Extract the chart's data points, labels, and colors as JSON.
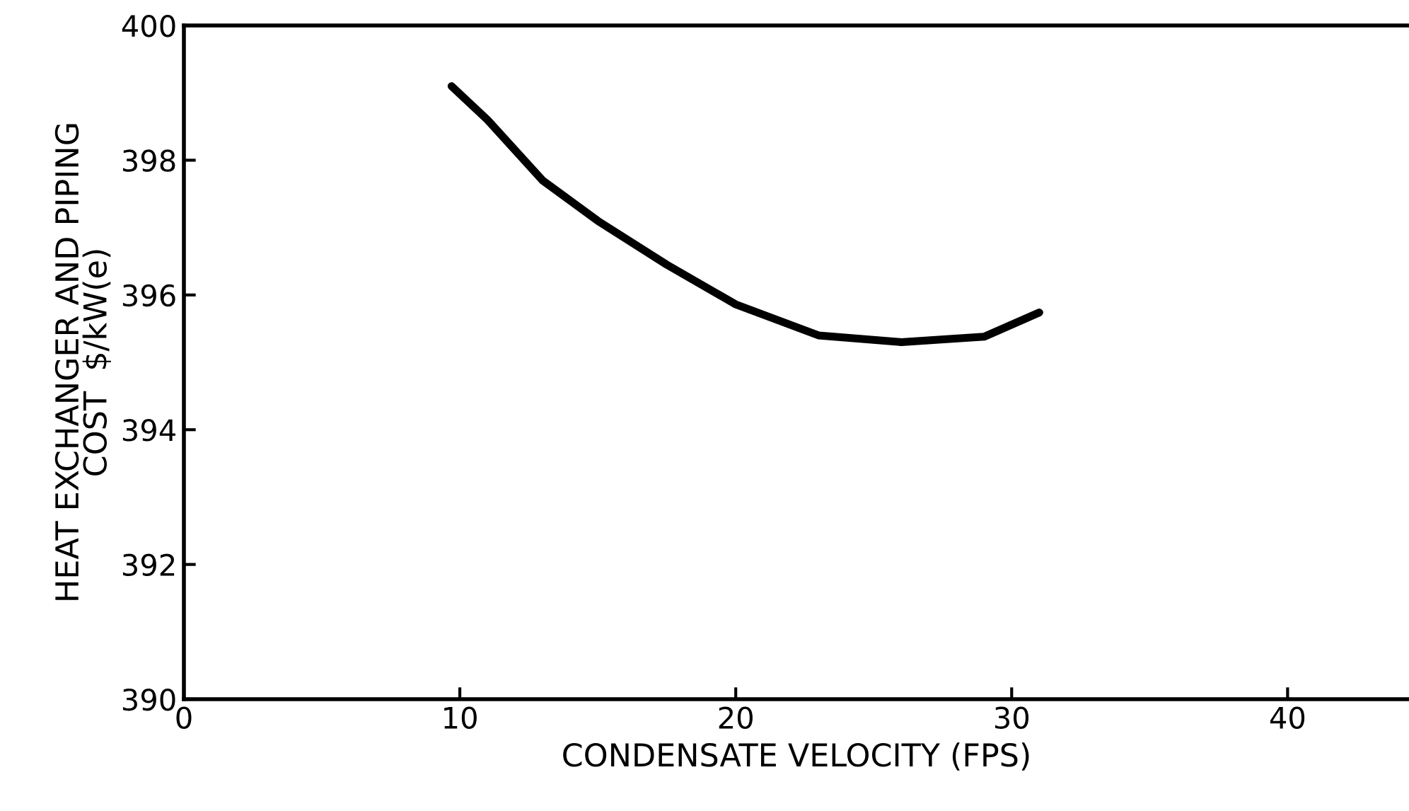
{
  "chart_data": {
    "type": "line",
    "xlabel": "CONDENSATE VELOCITY (FPS)",
    "ylabel": "HEAT EXCHANGER AND PIPING\nCOST  $/kW(e)",
    "series": [
      {
        "color": "#000000",
        "x": [
          9.7,
          11,
          13,
          15,
          17.5,
          20,
          23,
          26,
          29,
          31
        ],
        "values": [
          399.1,
          398.6,
          397.7,
          397.1,
          396.45,
          395.86,
          395.4,
          395.3,
          395.38,
          395.74
        ]
      }
    ],
    "xlim": [
      0,
      44.4
    ],
    "ylim": [
      390,
      400
    ],
    "xticks": [
      0,
      10,
      20,
      30,
      40
    ],
    "yticks": [
      390,
      392,
      394,
      396,
      398,
      400
    ],
    "grid": false,
    "legend": false,
    "marker": "none",
    "line_style": "solid"
  }
}
